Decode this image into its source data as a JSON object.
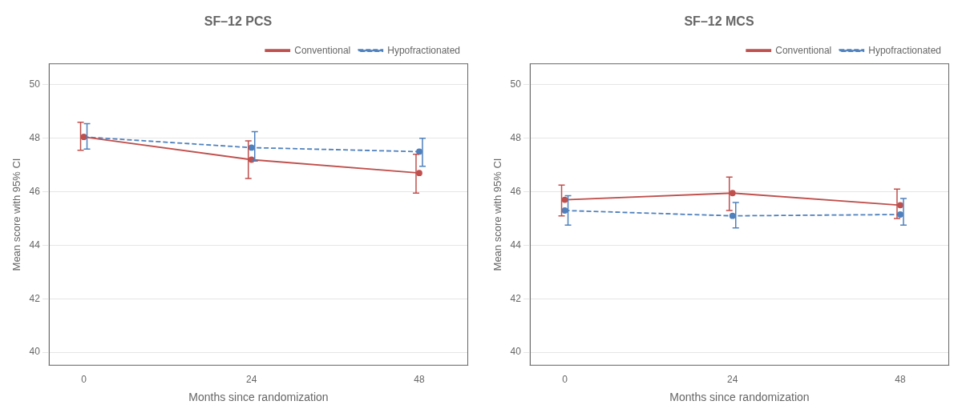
{
  "chart_data": [
    {
      "type": "line",
      "title": "SF–12 PCS",
      "xlabel": "Months since randomization",
      "ylabel": "Mean score with 95% CI",
      "x": [
        0,
        24,
        48
      ],
      "series": [
        {
          "name": "Conventional",
          "color": "#c0504d",
          "line_style": "solid",
          "marker": "o",
          "values": [
            48.05,
            47.2,
            46.7
          ],
          "ci_low": [
            47.55,
            46.5,
            45.95
          ],
          "ci_high": [
            48.6,
            47.9,
            47.4
          ]
        },
        {
          "name": "Hypofractionated",
          "color": "#4f81bd",
          "line_style": "dashed",
          "marker": "o",
          "values": [
            48.05,
            47.65,
            47.5
          ],
          "ci_low": [
            47.6,
            47.15,
            46.95
          ],
          "ci_high": [
            48.55,
            48.25,
            48.0
          ]
        }
      ],
      "xlim": [
        -5,
        55
      ],
      "xticks": [
        0,
        24,
        48
      ],
      "ylim": [
        39.5,
        50.8
      ],
      "yticks": [
        40,
        42,
        44,
        46,
        48,
        50
      ],
      "grid": true,
      "legend": "upper right"
    },
    {
      "type": "line",
      "title": "SF–12 MCS",
      "xlabel": "Months since randomization",
      "ylabel": "Mean score with 95% CI",
      "x": [
        0,
        24,
        48
      ],
      "series": [
        {
          "name": "Conventional",
          "color": "#c0504d",
          "line_style": "solid",
          "marker": "o",
          "values": [
            45.7,
            45.95,
            45.5
          ],
          "ci_low": [
            45.1,
            45.3,
            45.0
          ],
          "ci_high": [
            46.25,
            46.55,
            46.1
          ]
        },
        {
          "name": "Hypofractionated",
          "color": "#4f81bd",
          "line_style": "dashed",
          "marker": "o",
          "values": [
            45.3,
            45.1,
            45.15
          ],
          "ci_low": [
            44.75,
            44.65,
            44.75
          ],
          "ci_high": [
            45.85,
            45.6,
            45.75
          ]
        }
      ],
      "xlim": [
        -5,
        55
      ],
      "xticks": [
        0,
        24,
        48
      ],
      "ylim": [
        39.5,
        50.8
      ],
      "yticks": [
        40,
        42,
        44,
        46,
        48,
        50
      ],
      "grid": true,
      "legend": "upper right"
    }
  ]
}
